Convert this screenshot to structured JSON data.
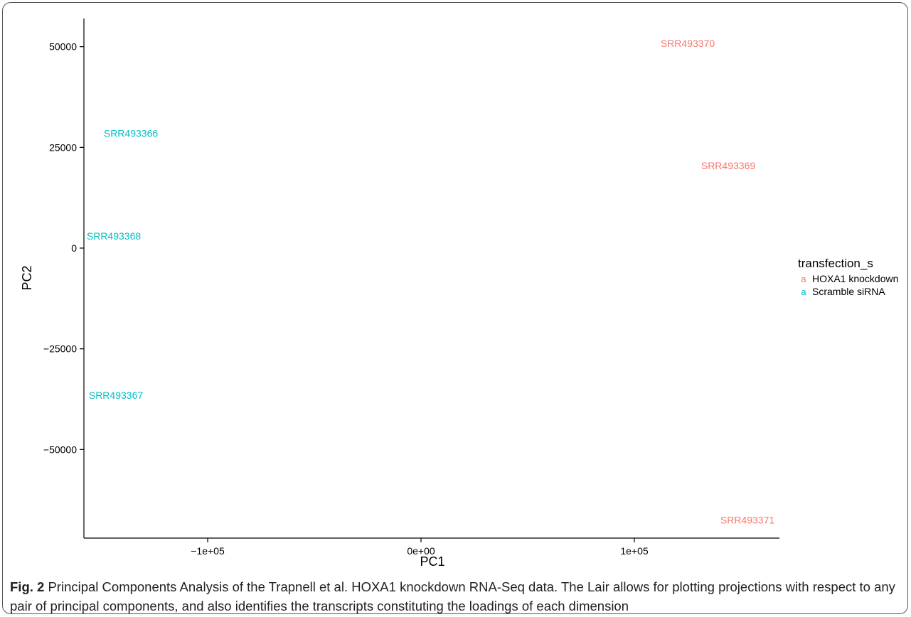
{
  "chart_data": {
    "type": "scatter",
    "title": "",
    "xlabel": "PC1",
    "ylabel": "PC2",
    "xlim": [
      -158000,
      168000
    ],
    "ylim": [
      -72000,
      57000
    ],
    "x_ticks": [
      {
        "value": -100000,
        "label": "−1e+05"
      },
      {
        "value": 0,
        "label": "0e+00"
      },
      {
        "value": 100000,
        "label": "1e+05"
      }
    ],
    "y_ticks": [
      {
        "value": 50000,
        "label": "50000"
      },
      {
        "value": 25000,
        "label": "25000"
      },
      {
        "value": 0,
        "label": "0"
      },
      {
        "value": -25000,
        "label": "−25000"
      },
      {
        "value": -50000,
        "label": "−50000"
      }
    ],
    "grid": false,
    "legend": {
      "title": "transfection_s",
      "placement": "right",
      "symbol": "a",
      "entries": [
        {
          "label": "HOXA1 knockdown",
          "color": "#F8766D"
        },
        {
          "label": "Scramble siRNA",
          "color": "#00BFC4"
        }
      ]
    },
    "series": [
      {
        "name": "HOXA1 knockdown",
        "color": "#F8766D",
        "points": [
          {
            "x": 125000,
            "y": 50800,
            "label": "SRR493370"
          },
          {
            "x": 144000,
            "y": 20500,
            "label": "SRR493369"
          },
          {
            "x": 153000,
            "y": -67500,
            "label": "SRR493371"
          }
        ]
      },
      {
        "name": "Scramble siRNA",
        "color": "#00BFC4",
        "points": [
          {
            "x": -136000,
            "y": 28500,
            "label": "SRR493366"
          },
          {
            "x": -144000,
            "y": 3000,
            "label": "SRR493368"
          },
          {
            "x": -143000,
            "y": -36500,
            "label": "SRR493367"
          }
        ]
      }
    ]
  },
  "caption": {
    "label": "Fig. 2",
    "text": "Principal Components Analysis of the Trapnell et al. HOXA1 knockdown RNA-Seq data. The Lair allows for plotting projections with respect to any pair of principal components, and also identifies the transcripts constituting the loadings of each dimension"
  }
}
